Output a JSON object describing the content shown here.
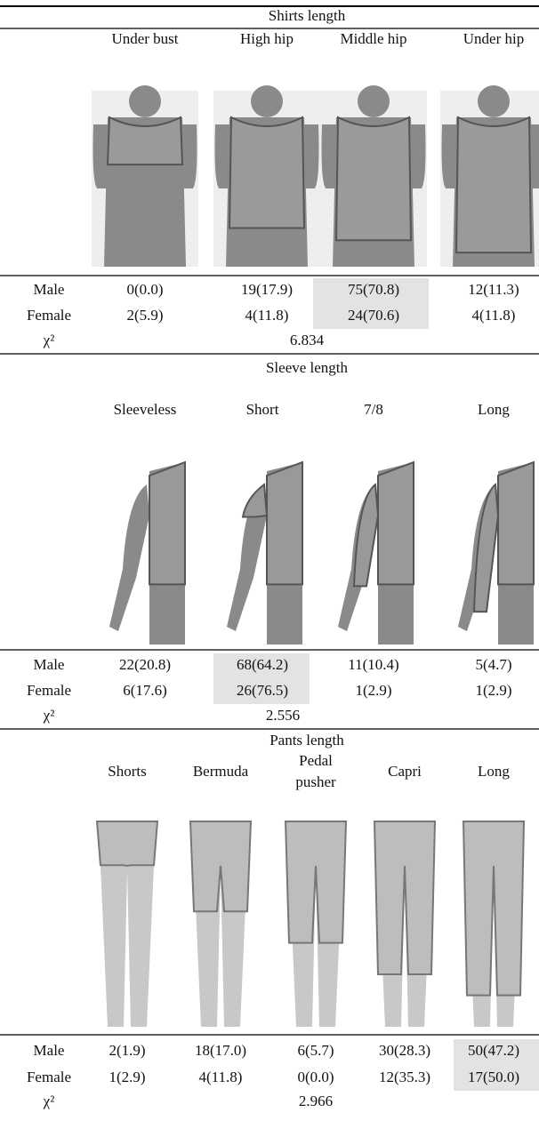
{
  "sections": [
    {
      "title": "Shirts length",
      "columns": [
        "Under bust",
        "High hip",
        "Middle hip",
        "Under hip"
      ],
      "rows": [
        {
          "label": "Male",
          "cells": [
            "0(0.0)",
            "19(17.9)",
            "75(70.8)",
            "12(11.3)"
          ]
        },
        {
          "label": "Female",
          "cells": [
            "2(5.9)",
            "4(11.8)",
            "24(70.6)",
            "4(11.8)"
          ]
        }
      ],
      "chi_label": "χ²",
      "chi_value": "6.834",
      "highlighted_column": 2
    },
    {
      "title": "Sleeve length",
      "columns": [
        "Sleeveless",
        "Short",
        "7/8",
        "Long"
      ],
      "rows": [
        {
          "label": "Male",
          "cells": [
            "22(20.8)",
            "68(64.2)",
            "11(10.4)",
            "5(4.7)"
          ]
        },
        {
          "label": "Female",
          "cells": [
            "6(17.6)",
            "26(76.5)",
            "1(2.9)",
            "1(2.9)"
          ]
        }
      ],
      "chi_label": "χ²",
      "chi_value": "2.556",
      "highlighted_column": 1
    },
    {
      "title": "Pants length",
      "columns": [
        "Shorts",
        "Bermuda",
        "Pedal pusher",
        "Capri",
        "Long"
      ],
      "rows": [
        {
          "label": "Male",
          "cells": [
            "2(1.9)",
            "18(17.0)",
            "6(5.7)",
            "30(28.3)",
            "50(47.2)"
          ]
        },
        {
          "label": "Female",
          "cells": [
            "1(2.9)",
            "4(11.8)",
            "0(0.0)",
            "12(35.3)",
            "17(50.0)"
          ]
        }
      ],
      "chi_label": "χ²",
      "chi_value": "2.966",
      "highlighted_column": 4
    }
  ]
}
